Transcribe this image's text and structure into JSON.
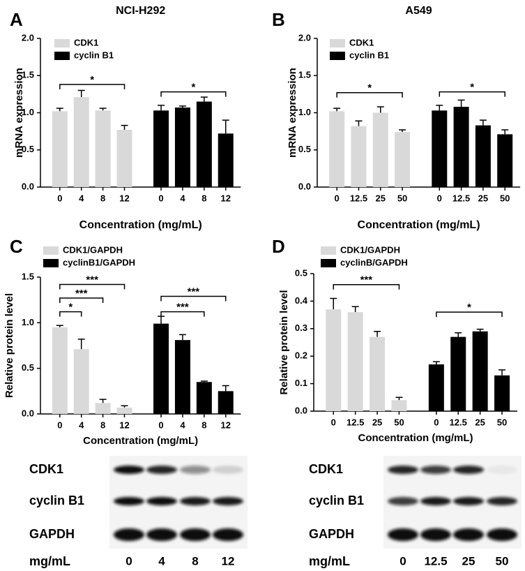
{
  "chart_data": [
    {
      "type": "bar",
      "panel": "A",
      "title": "NCI-H292",
      "ylabel": "mRNA expression",
      "xlabel": "Concentration (mg/mL)",
      "categories": [
        "0",
        "4",
        "8",
        "12"
      ],
      "ylim": [
        0,
        2
      ],
      "yticks": [
        {
          "value": 0,
          "label": "0.0"
        },
        0.5,
        {
          "value": 1,
          "label": "1.0"
        },
        1.5,
        {
          "value": 2,
          "label": "2.0"
        }
      ],
      "series": [
        {
          "name": "CDK1",
          "color": "#d9d9d9",
          "values": [
            1.02,
            1.21,
            1.03,
            0.77
          ],
          "errors": [
            0.04,
            0.09,
            0.03,
            0.06
          ]
        },
        {
          "name": "cyclin B1",
          "color": "#000000",
          "values": [
            1.03,
            1.07,
            1.15,
            0.72
          ],
          "errors": [
            0.07,
            0.02,
            0.06,
            0.18
          ]
        }
      ],
      "significance": [
        {
          "series": 0,
          "from": 0,
          "to": 3,
          "y": 1.38,
          "label": "*"
        },
        {
          "series": 1,
          "from": 0,
          "to": 3,
          "y": 1.28,
          "label": "*"
        }
      ]
    },
    {
      "type": "bar",
      "panel": "B",
      "title": "A549",
      "ylabel": "mRNA expression",
      "xlabel": "Concentration (mg/mL)",
      "categories": [
        "0",
        "12.5",
        "25",
        "50"
      ],
      "ylim": [
        0,
        2
      ],
      "yticks": [
        {
          "value": 0,
          "label": "0.0"
        },
        0.5,
        {
          "value": 1,
          "label": "1.0"
        },
        1.5,
        {
          "value": 2,
          "label": "2.0"
        }
      ],
      "series": [
        {
          "name": "CDK1",
          "color": "#d9d9d9",
          "values": [
            1.02,
            0.82,
            1.0,
            0.74
          ],
          "errors": [
            0.04,
            0.07,
            0.08,
            0.03
          ]
        },
        {
          "name": "cyclin B1",
          "color": "#000000",
          "values": [
            1.03,
            1.08,
            0.83,
            0.71
          ],
          "errors": [
            0.07,
            0.09,
            0.07,
            0.06
          ]
        }
      ],
      "significance": [
        {
          "series": 0,
          "from": 0,
          "to": 3,
          "y": 1.27,
          "label": "*"
        },
        {
          "series": 1,
          "from": 0,
          "to": 3,
          "y": 1.28,
          "label": "*"
        }
      ]
    },
    {
      "type": "bar",
      "panel": "C",
      "ylabel": "Relative protein  level",
      "xlabel": "Concentration (mg/mL)",
      "categories": [
        "0",
        "4",
        "8",
        "12"
      ],
      "ylim": [
        0,
        1.5
      ],
      "yticks": [
        {
          "value": 0,
          "label": "0.0"
        },
        0.5,
        {
          "value": 1,
          "label": "1.0"
        },
        1.5
      ],
      "series": [
        {
          "name": "CDK1/GAPDH",
          "color": "#d9d9d9",
          "values": [
            0.95,
            0.71,
            0.12,
            0.07
          ],
          "errors": [
            0.02,
            0.11,
            0.04,
            0.02
          ]
        },
        {
          "name": "cyclinB1/GAPDH",
          "color": "#000000",
          "values": [
            0.99,
            0.81,
            0.35,
            0.25
          ],
          "errors": [
            0.08,
            0.06,
            0.01,
            0.06
          ]
        }
      ],
      "significance": [
        {
          "series": 0,
          "from": 0,
          "to": 1,
          "y": 1.12,
          "label": "*"
        },
        {
          "series": 0,
          "from": 0,
          "to": 2,
          "y": 1.27,
          "label": "***"
        },
        {
          "series": 0,
          "from": 0,
          "to": 3,
          "y": 1.42,
          "label": "***"
        },
        {
          "series": 1,
          "from": 0,
          "to": 2,
          "y": 1.12,
          "label": "***"
        },
        {
          "series": 1,
          "from": 0,
          "to": 3,
          "y": 1.29,
          "label": "***"
        }
      ]
    },
    {
      "type": "bar",
      "panel": "D",
      "ylabel": "Relative protein  level",
      "xlabel": "Concentration (mg/mL)",
      "categories": [
        "0",
        "12.5",
        "25",
        "50"
      ],
      "ylim": [
        0,
        0.5
      ],
      "yticks": [
        {
          "value": 0,
          "label": "0.0"
        },
        0.1,
        0.2,
        0.3,
        0.4,
        0.5
      ],
      "series": [
        {
          "name": "CDK1/GAPDH",
          "color": "#d9d9d9",
          "values": [
            0.37,
            0.36,
            0.27,
            0.04
          ],
          "errors": [
            0.04,
            0.02,
            0.02,
            0.01
          ]
        },
        {
          "name": "cyclinB/GAPDH",
          "color": "#000000",
          "values": [
            0.17,
            0.27,
            0.29,
            0.13
          ],
          "errors": [
            0.01,
            0.015,
            0.008,
            0.02
          ]
        }
      ],
      "significance": [
        {
          "series": 0,
          "from": 0,
          "to": 3,
          "y": 0.46,
          "label": "***"
        },
        {
          "series": 1,
          "from": 0,
          "to": 3,
          "y": 0.36,
          "label": "*"
        }
      ]
    }
  ],
  "blots": [
    {
      "rows": [
        "CDK1",
        "cyclin B1",
        "GAPDH"
      ],
      "unit": "mg/mL",
      "lanes": [
        "0",
        "4",
        "8",
        "12"
      ]
    },
    {
      "rows": [
        "CDK1",
        "cyclin B1",
        "GAPDH"
      ],
      "unit": "mg/mL",
      "lanes": [
        "0",
        "12.5",
        "25",
        "50"
      ]
    }
  ]
}
